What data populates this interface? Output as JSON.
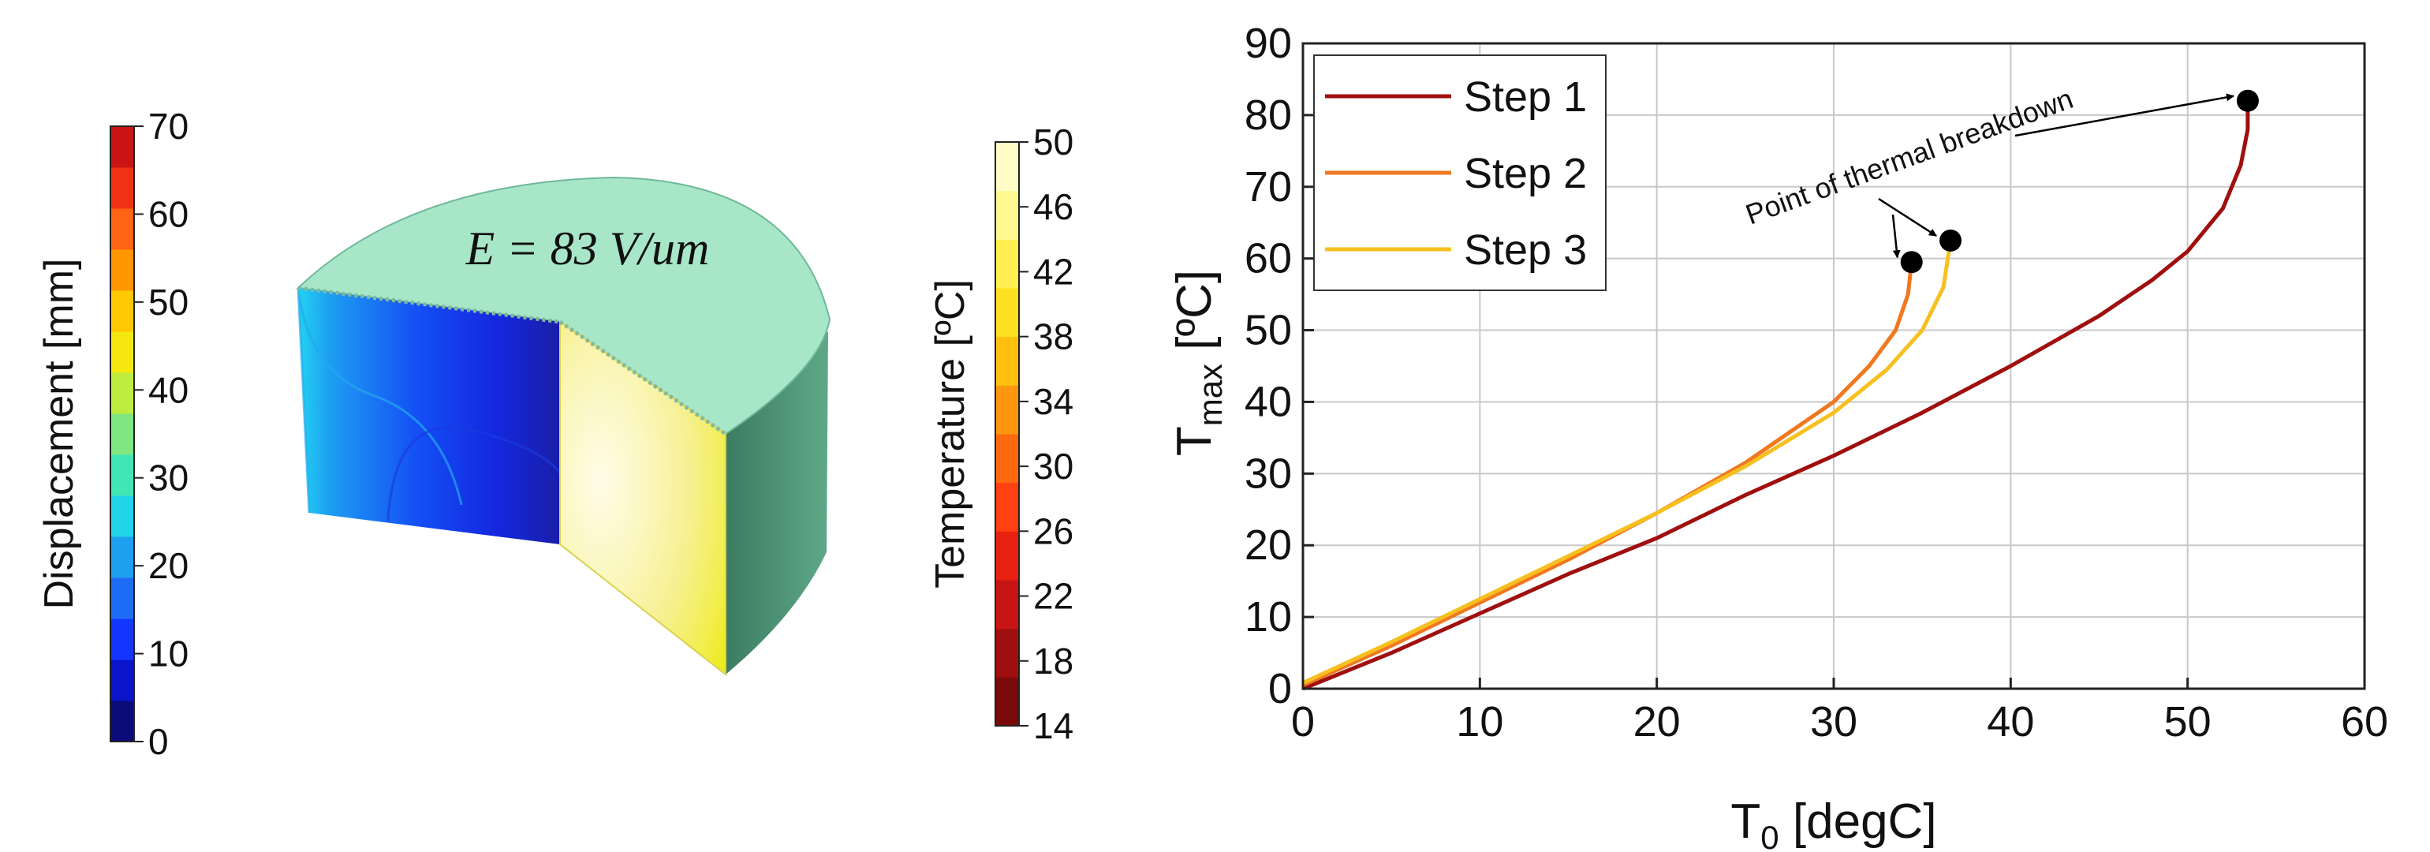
{
  "displacement_bar": {
    "label": "Displacement [mm]",
    "ticks": [
      "0",
      "10",
      "20",
      "30",
      "40",
      "50",
      "60",
      "70"
    ],
    "colors": [
      "#0b0b7a",
      "#0a14c8",
      "#1437ff",
      "#1e6cf5",
      "#1ea0f0",
      "#22d4e8",
      "#40e6b4",
      "#80e680",
      "#c0ec40",
      "#f4e810",
      "#ffc800",
      "#ff9600",
      "#ff6414",
      "#f03214",
      "#c81414"
    ]
  },
  "model": {
    "field_label": "E = 83 V/um",
    "top_color": "#a8e6c8",
    "side_color": "#4a8a70"
  },
  "temperature_bar": {
    "label": "Temperature [ºC]",
    "ticks": [
      "14",
      "18",
      "22",
      "26",
      "30",
      "34",
      "38",
      "42",
      "46",
      "50"
    ],
    "colors": [
      "#7a0a0a",
      "#a00f0f",
      "#c81414",
      "#e82010",
      "#ff4010",
      "#ff6a10",
      "#ff9610",
      "#ffc010",
      "#ffe020",
      "#fff050",
      "#fff890",
      "#fffcc8"
    ]
  },
  "chart_data": {
    "type": "line",
    "xlabel": "T₀ [degC]",
    "ylabel": "Tmax [ºC]",
    "xlim": [
      0,
      60
    ],
    "ylim": [
      0,
      90
    ],
    "xticks": [
      0,
      10,
      20,
      30,
      40,
      50,
      60
    ],
    "yticks": [
      0,
      10,
      20,
      30,
      40,
      50,
      60,
      70,
      80,
      90
    ],
    "grid": true,
    "legend_position": "top-left",
    "annotation": "Point of thermal breakdown",
    "series": [
      {
        "name": "Step 1",
        "color": "#a00f0f",
        "x": [
          0,
          5,
          10,
          15,
          20,
          25,
          30,
          35,
          40,
          45,
          48,
          50,
          52,
          53,
          53.4,
          53.4
        ],
        "y": [
          0,
          5,
          10.5,
          16,
          21,
          27,
          32.5,
          38.5,
          45,
          52,
          57,
          61,
          67,
          73,
          78,
          82
        ],
        "breakdown": {
          "x": 53.4,
          "y": 82
        }
      },
      {
        "name": "Step 2",
        "color": "#f07820",
        "x": [
          0,
          5,
          10,
          15,
          20,
          25,
          30,
          32,
          33.5,
          34.2,
          34.4
        ],
        "y": [
          0.5,
          6,
          12,
          18,
          24.5,
          31.5,
          40,
          45,
          50,
          55,
          59.5
        ],
        "breakdown": {
          "x": 34.4,
          "y": 59.5
        }
      },
      {
        "name": "Step 3",
        "color": "#f7c020",
        "x": [
          0,
          5,
          10,
          15,
          20,
          25,
          30,
          33,
          35,
          36.2,
          36.6
        ],
        "y": [
          0.8,
          6.5,
          12.5,
          18.5,
          24.5,
          31,
          38.5,
          44.5,
          50,
          56,
          62.5
        ],
        "breakdown": {
          "x": 36.6,
          "y": 62.5
        }
      }
    ]
  }
}
